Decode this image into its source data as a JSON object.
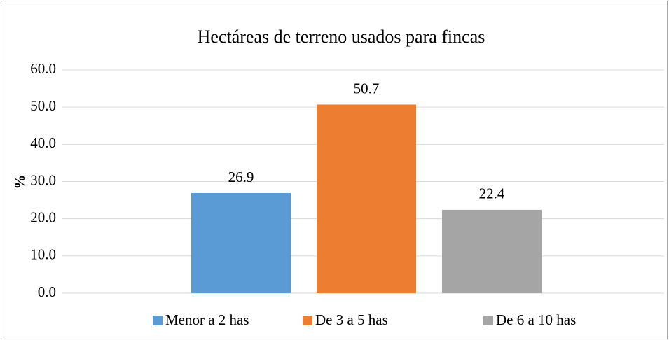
{
  "chart_data": {
    "type": "bar",
    "title": "Hectáreas de terreno usados para fincas",
    "y_label": "%",
    "categories": [
      null
    ],
    "series": [
      {
        "name": "Menor a 2 has",
        "color": "#5b9bd5",
        "values": [
          26.9
        ]
      },
      {
        "name": "De 3 a 5 has",
        "color": "#ed7d31",
        "values": [
          50.7
        ]
      },
      {
        "name": "De 6 a 10 has",
        "color": "#a5a5a5",
        "values": [
          22.4
        ]
      }
    ],
    "ylim": [
      0,
      60
    ],
    "yticks": [
      {
        "value": 0,
        "label": "0.0"
      },
      {
        "value": 10,
        "label": "10.0"
      },
      {
        "value": 20,
        "label": "20.0"
      },
      {
        "value": 30,
        "label": "30.0"
      },
      {
        "value": 40,
        "label": "40.0"
      },
      {
        "value": 50,
        "label": "50.0"
      },
      {
        "value": 60,
        "label": "60.0"
      }
    ],
    "grid": true,
    "legend": "bottom"
  }
}
